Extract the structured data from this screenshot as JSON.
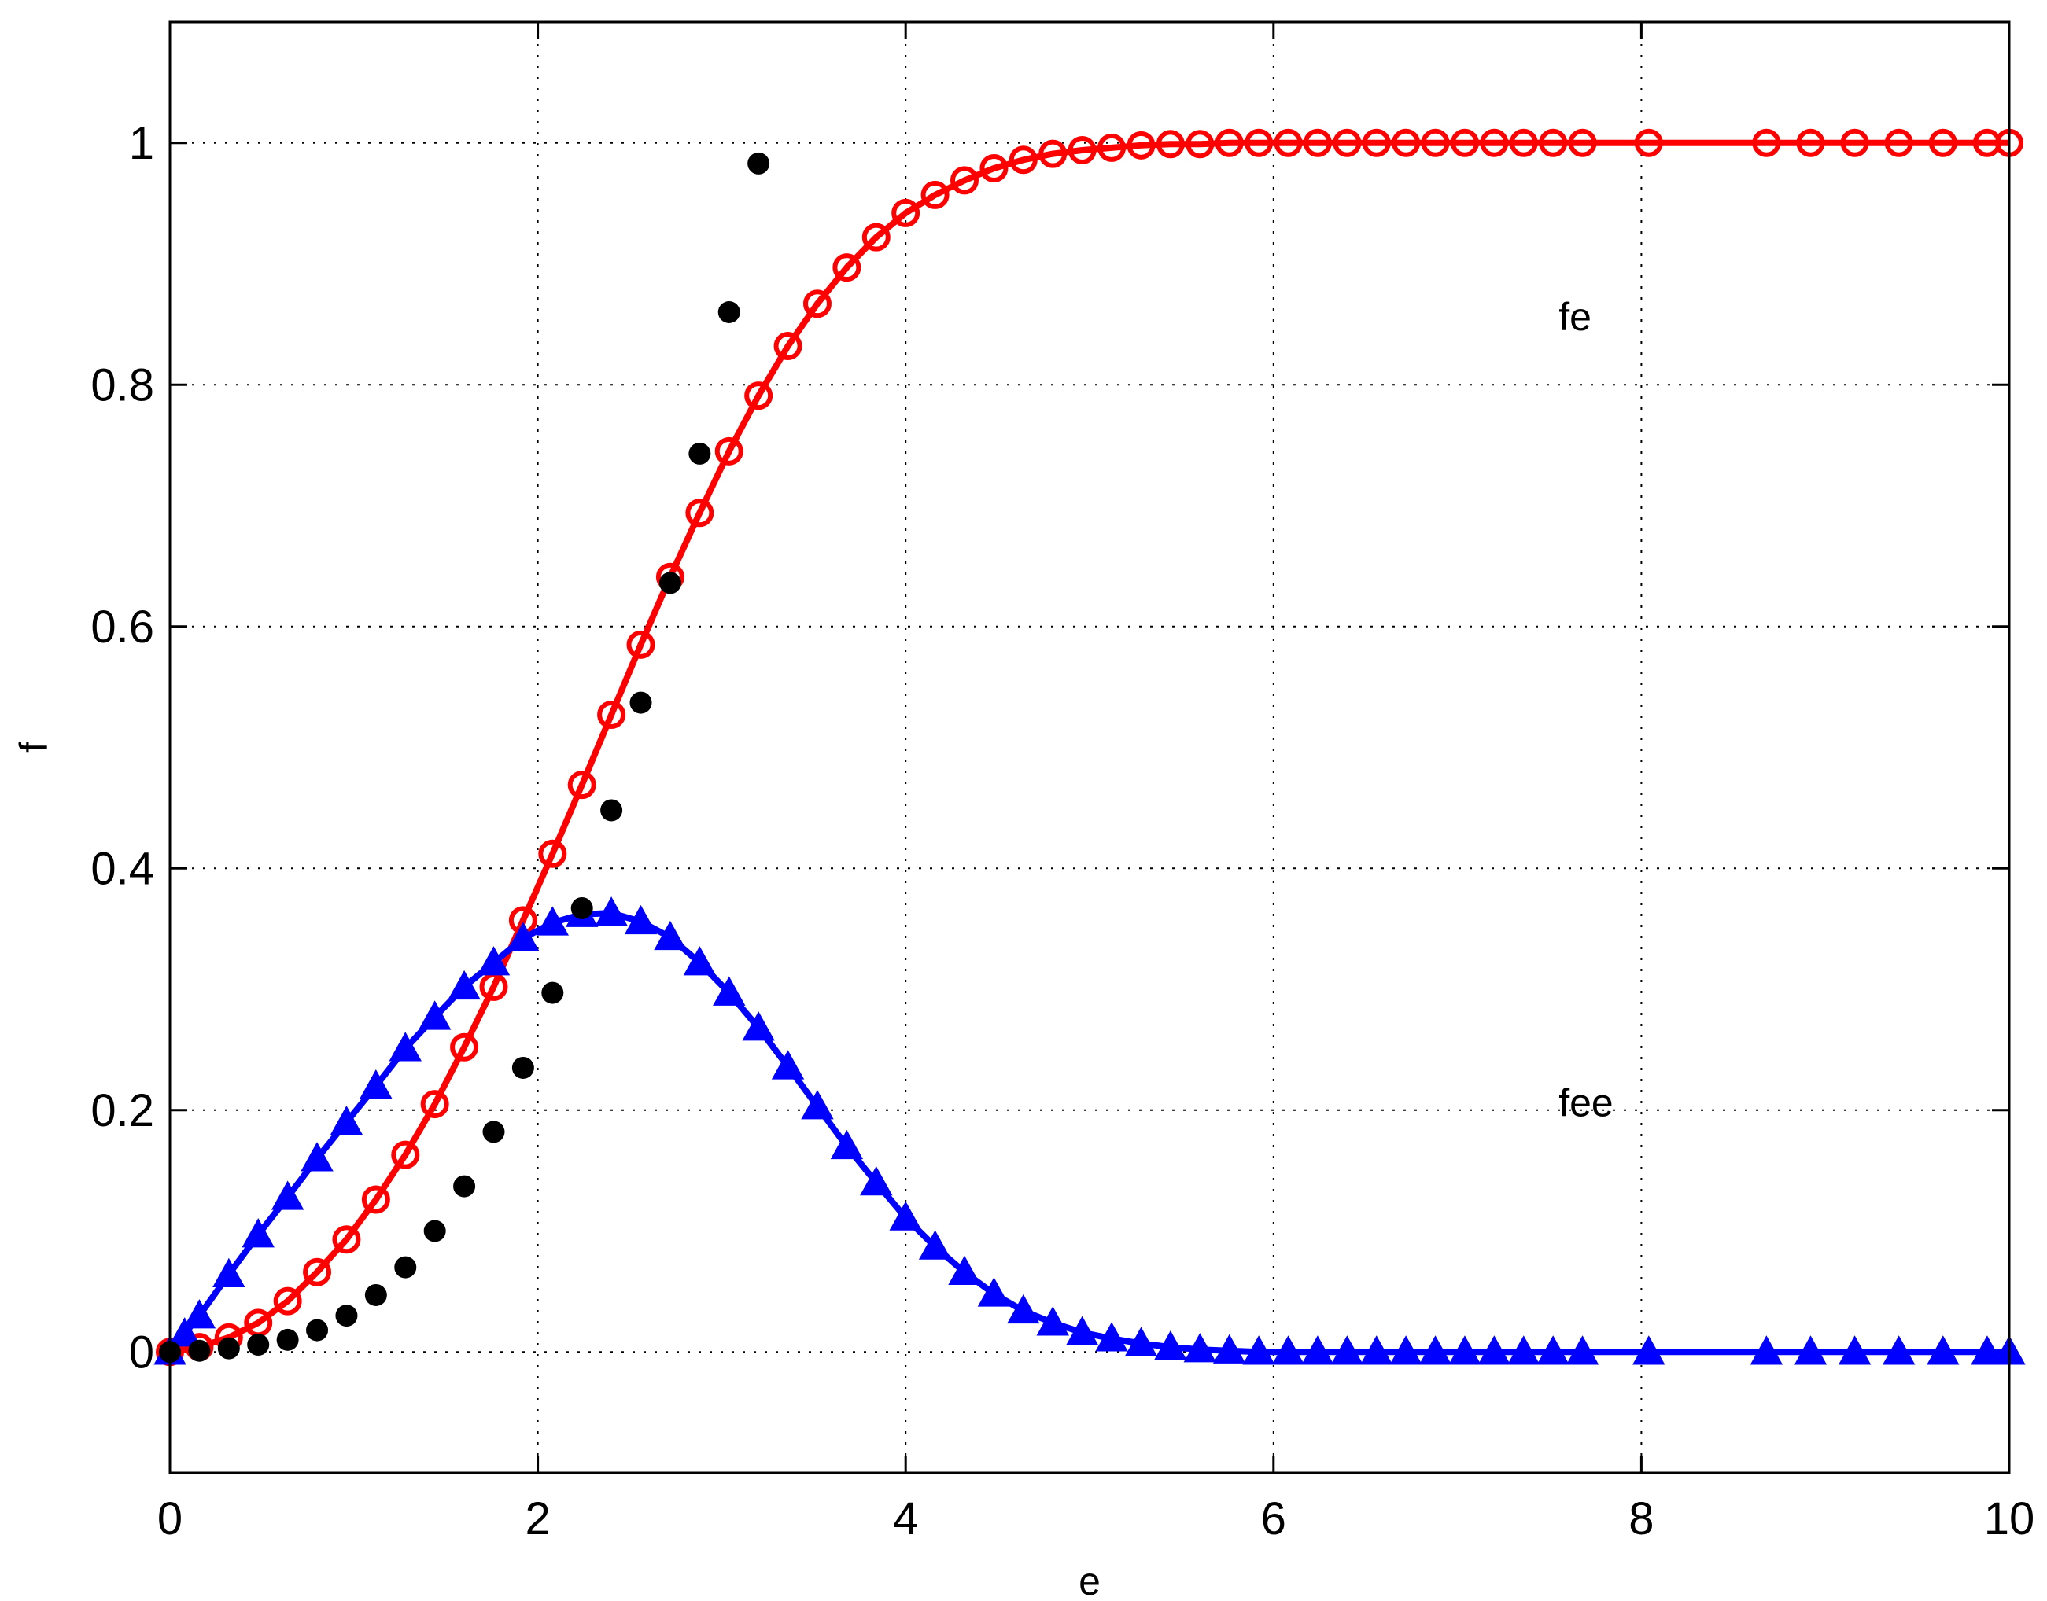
{
  "chart_data": {
    "type": "line",
    "title": "",
    "xlabel": "e",
    "ylabel": "f",
    "xlim": [
      0,
      10
    ],
    "ylim": [
      -0.1,
      1.1
    ],
    "grid": true,
    "grid_style": "dotted",
    "xticks": [
      0,
      2,
      4,
      6,
      8,
      10
    ],
    "yticks": [
      0,
      0.2,
      0.4,
      0.6,
      0.8,
      1
    ],
    "xtick_labels": [
      "0",
      "2",
      "4",
      "6",
      "8",
      "10"
    ],
    "ytick_labels": [
      "0",
      "0.2",
      "0.4",
      "0.6",
      "0.8",
      "1"
    ],
    "annotations": [
      {
        "text": "fe",
        "x": 7.55,
        "y": 0.845
      },
      {
        "text": "fee",
        "x": 7.55,
        "y": 0.195
      }
    ],
    "series": [
      {
        "color": "#ff0000",
        "marker": "circle-open",
        "line": true,
        "x": [
          0,
          0.16,
          0.32,
          0.48,
          0.64,
          0.8,
          0.96,
          1.12,
          1.28,
          1.44,
          1.6,
          1.76,
          1.92,
          2.08,
          2.24,
          2.4,
          2.56,
          2.72,
          2.88,
          3.04,
          3.2,
          3.36,
          3.52,
          3.68,
          3.84,
          4.0,
          4.16,
          4.32,
          4.48,
          4.64,
          4.8,
          4.96,
          5.12,
          5.28,
          5.44,
          5.6,
          5.76,
          5.92,
          6.08,
          6.24,
          6.4,
          6.56,
          6.72,
          6.88,
          7.04,
          7.2,
          7.36,
          7.52,
          7.68,
          8.04,
          8.68,
          8.92,
          9.16,
          9.4,
          9.64,
          9.88,
          10.0
        ],
        "y": [
          0,
          0.004,
          0.012,
          0.024,
          0.042,
          0.066,
          0.093,
          0.126,
          0.163,
          0.205,
          0.252,
          0.302,
          0.357,
          0.412,
          0.469,
          0.527,
          0.585,
          0.641,
          0.694,
          0.745,
          0.791,
          0.832,
          0.867,
          0.897,
          0.922,
          0.942,
          0.957,
          0.969,
          0.979,
          0.986,
          0.991,
          0.994,
          0.996,
          0.998,
          0.999,
          0.999,
          1,
          1,
          1,
          1,
          1,
          1,
          1,
          1,
          1,
          1,
          1,
          1,
          1,
          1,
          1,
          1,
          1,
          1,
          1,
          1,
          1
        ]
      },
      {
        "color": "#0000ff",
        "marker": "triangle-filled",
        "line": true,
        "x": [
          0,
          0.08,
          0.16,
          0.32,
          0.48,
          0.64,
          0.8,
          0.96,
          1.12,
          1.28,
          1.44,
          1.6,
          1.76,
          1.92,
          2.08,
          2.24,
          2.4,
          2.56,
          2.72,
          2.88,
          3.04,
          3.2,
          3.36,
          3.52,
          3.68,
          3.84,
          4.0,
          4.16,
          4.32,
          4.48,
          4.64,
          4.8,
          4.96,
          5.12,
          5.28,
          5.44,
          5.6,
          5.76,
          5.92,
          6.08,
          6.24,
          6.4,
          6.56,
          6.72,
          6.88,
          7.04,
          7.2,
          7.36,
          7.52,
          7.68,
          8.04,
          8.68,
          8.92,
          9.16,
          9.4,
          9.64,
          9.88,
          10.0
        ],
        "y": [
          0,
          0.015,
          0.03,
          0.064,
          0.097,
          0.128,
          0.16,
          0.19,
          0.22,
          0.251,
          0.277,
          0.302,
          0.322,
          0.342,
          0.355,
          0.362,
          0.363,
          0.356,
          0.343,
          0.322,
          0.297,
          0.268,
          0.236,
          0.203,
          0.17,
          0.14,
          0.111,
          0.087,
          0.066,
          0.048,
          0.034,
          0.024,
          0.016,
          0.011,
          0.007,
          0.004,
          0.002,
          0.001,
          0,
          0,
          0,
          0,
          0,
          0,
          0,
          0,
          0,
          0,
          0,
          0,
          0,
          0,
          0,
          0,
          0,
          0,
          0,
          0
        ]
      },
      {
        "color": "#000000",
        "marker": "dot-filled",
        "line": false,
        "x": [
          0,
          0.16,
          0.32,
          0.48,
          0.64,
          0.8,
          0.96,
          1.12,
          1.28,
          1.44,
          1.6,
          1.76,
          1.92,
          2.08,
          2.24,
          2.4,
          2.56,
          2.72,
          2.88,
          3.04,
          3.2
        ],
        "y": [
          0,
          0.001,
          0.003,
          0.006,
          0.01,
          0.018,
          0.03,
          0.047,
          0.07,
          0.1,
          0.137,
          0.182,
          0.235,
          0.297,
          0.367,
          0.448,
          0.537,
          0.636,
          0.743,
          0.86,
          0.983
        ]
      }
    ]
  }
}
